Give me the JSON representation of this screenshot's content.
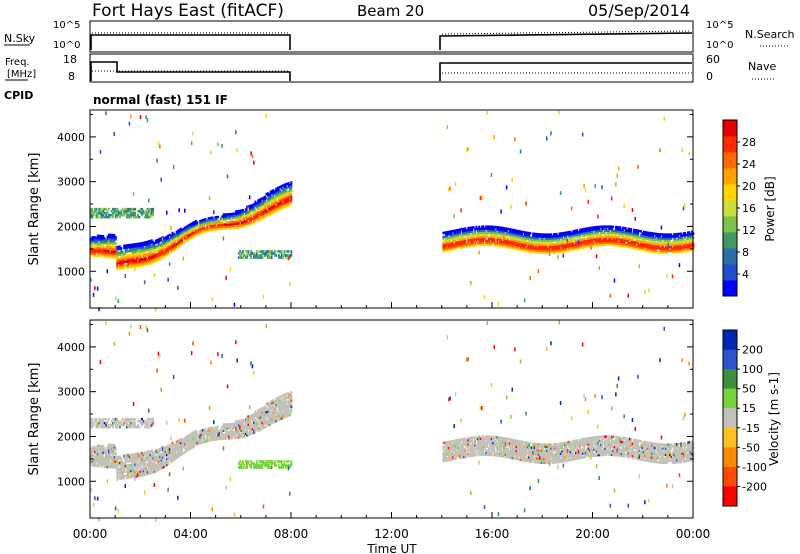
{
  "header": {
    "title": "Fort Hays East (fitACF)",
    "beam": "Beam 20",
    "date": "05/Sep/2014"
  },
  "small_panels": {
    "nsky_label": "N.Sky",
    "nsearch_label": "N.Search",
    "nsky_ticks": [
      "10^5",
      "10^0"
    ],
    "nsky_right_ticks": [
      "10^5",
      "10^0"
    ],
    "freq_label_1": "Freq.",
    "freq_label_2": "[MHz]",
    "freq_ticks": [
      "18",
      "8"
    ],
    "nave_label": "Nave",
    "nave_ticks": [
      "60",
      "0"
    ],
    "cpid_label": "CPID",
    "cpid_text": "normal (fast) 151 IF"
  },
  "chart_data": [
    {
      "type": "heatmap",
      "name": "power",
      "ylabel": "Slant Range [km]",
      "yticks": [
        "1000",
        "2000",
        "3000",
        "4000"
      ],
      "ylim": [
        180,
        4600
      ],
      "colorbar_label": "Power [dB]",
      "colorbar_ticks": [
        "4",
        "8",
        "12",
        "16",
        "20",
        "24",
        "28"
      ],
      "colorbar_colors": [
        "#0000ff",
        "#1f4fd0",
        "#2a6fa8",
        "#3f9a66",
        "#7fc24a",
        "#cde03a",
        "#ffd400",
        "#ffa000",
        "#ff6a00",
        "#ff2a00",
        "#e40000"
      ]
    },
    {
      "type": "heatmap",
      "name": "velocity",
      "ylabel": "Slant Range [km]",
      "yticks": [
        "1000",
        "2000",
        "3000",
        "4000"
      ],
      "ylim": [
        180,
        4600
      ],
      "xlabel": "Time UT",
      "xticks": [
        "00:00",
        "04:00",
        "08:00",
        "12:00",
        "16:00",
        "20:00",
        "00:00"
      ],
      "xlim_hours": [
        0,
        24
      ],
      "data_gap_hours": [
        8,
        14
      ],
      "colorbar_label": "Velocity [m s-1]",
      "colorbar_ticks": [
        "200",
        "100",
        "50",
        "15",
        "-15",
        "-50",
        "-100",
        "-200"
      ],
      "colorbar_colors": [
        "#0026b4",
        "#2b55c8",
        "#3c8f3c",
        "#77d33c",
        "#c2c2bb",
        "#ffc020",
        "#ff8a00",
        "#ff4a00",
        "#ff0000"
      ]
    }
  ]
}
